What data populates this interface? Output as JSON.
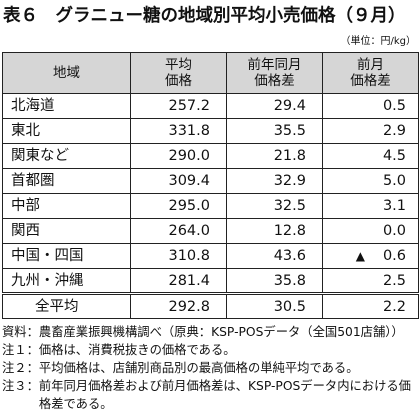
{
  "title": "表６　グラニュー糖の地域別平均小売価格（９月）",
  "unit": "（単位：円/kg）",
  "table": {
    "headers": {
      "region": [
        "地域"
      ],
      "avg_price": [
        "平均",
        "価格"
      ],
      "yoy_diff": [
        "前年同月",
        "価格差"
      ],
      "mom_diff": [
        "前月",
        "価格差"
      ]
    },
    "rows": [
      {
        "region": "北海道",
        "avg_price": "257.2",
        "yoy_diff": "29.4",
        "mom_diff": "0.5"
      },
      {
        "region": "東北",
        "avg_price": "331.8",
        "yoy_diff": "35.5",
        "mom_diff": "2.9"
      },
      {
        "region": "関東など",
        "avg_price": "290.0",
        "yoy_diff": "21.8",
        "mom_diff": "4.5"
      },
      {
        "region": "首都圏",
        "avg_price": "309.4",
        "yoy_diff": "32.9",
        "mom_diff": "5.0"
      },
      {
        "region": "中部",
        "avg_price": "295.0",
        "yoy_diff": "32.5",
        "mom_diff": "3.1"
      },
      {
        "region": "関西",
        "avg_price": "264.0",
        "yoy_diff": "12.8",
        "mom_diff": "0.0"
      },
      {
        "region": "中国・四国",
        "avg_price": "310.8",
        "yoy_diff": "43.6",
        "mom_sign": "▲",
        "mom_diff": "0.6"
      },
      {
        "region": "九州・沖縄",
        "avg_price": "281.4",
        "yoy_diff": "35.8",
        "mom_diff": "2.5"
      },
      {
        "region": "全平均",
        "avg_price": "292.8",
        "yoy_diff": "30.5",
        "mom_diff": "2.2"
      }
    ]
  },
  "notes": [
    {
      "label": "資料：",
      "text": "農畜産業振興機構調べ（原典：KSP-POSデータ（全国501店舗））"
    },
    {
      "label": "注１：",
      "text": "価格は、消費税抜きの価格である。"
    },
    {
      "label": "注２：",
      "text": "平均価格は、店舗別商品別の最高価格の単純平均である。"
    },
    {
      "label": "注３：",
      "text": "前年同月価格差および前月価格差は、KSP-POSデータ内における価格差である。"
    }
  ],
  "colors": {
    "header_bg": "#d6d6d6",
    "border": "#222222",
    "text": "#111111"
  }
}
